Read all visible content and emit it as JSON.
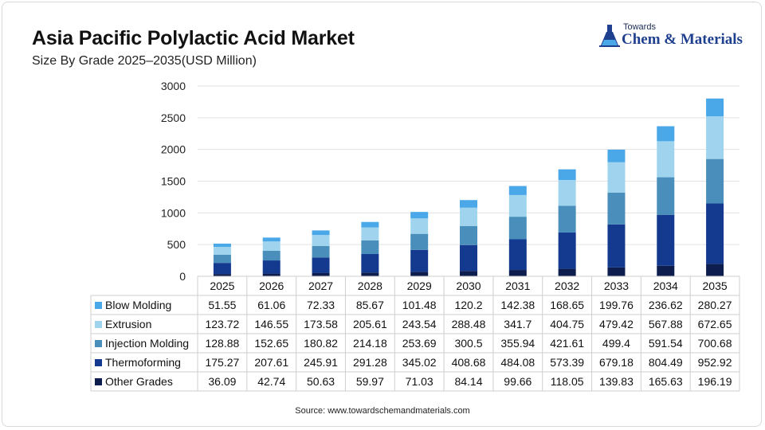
{
  "header": {
    "title": "Asia Pacific Polylactic Acid Market",
    "subtitle": "Size By Grade 2025–2035(USD Million)"
  },
  "logo": {
    "small": "Towards",
    "big": "Chem & Materials",
    "icon": "flask-icon"
  },
  "source": "Source: www.towardschemandmaterials.com",
  "chart_data": {
    "type": "bar",
    "stacked": true,
    "title": "Asia Pacific Polylactic Acid Market",
    "subtitle": "Size By Grade 2025–2035(USD Million)",
    "categories": [
      "2025",
      "2026",
      "2027",
      "2028",
      "2029",
      "2030",
      "2031",
      "2032",
      "2033",
      "2034",
      "2035"
    ],
    "ylim": [
      0,
      3000
    ],
    "yticks": [
      0,
      500,
      1000,
      1500,
      2000,
      2500,
      3000
    ],
    "grid": true,
    "legend": "table-left",
    "series": [
      {
        "name": "Blow Molding",
        "color": "#4aa8e8",
        "values": [
          51.55,
          61.06,
          72.33,
          85.67,
          101.48,
          120.2,
          142.38,
          168.65,
          199.76,
          236.62,
          280.27
        ]
      },
      {
        "name": "Extrusion",
        "color": "#9fd3ee",
        "values": [
          123.72,
          146.55,
          173.58,
          205.61,
          243.54,
          288.48,
          341.7,
          404.75,
          479.42,
          567.88,
          672.65
        ]
      },
      {
        "name": "Injection Molding",
        "color": "#4a8fbc",
        "values": [
          128.88,
          152.65,
          180.82,
          214.18,
          253.69,
          300.5,
          355.94,
          421.61,
          499.4,
          591.54,
          700.68
        ]
      },
      {
        "name": "Thermoforming",
        "color": "#133a8e",
        "values": [
          175.27,
          207.61,
          245.91,
          291.28,
          345.02,
          408.68,
          484.08,
          573.39,
          679.18,
          804.49,
          952.92
        ]
      },
      {
        "name": "Other Grades",
        "color": "#0d1d4e",
        "values": [
          36.09,
          42.74,
          50.63,
          59.97,
          71.03,
          84.14,
          99.66,
          118.05,
          139.83,
          165.63,
          196.19
        ]
      }
    ],
    "stack_order": [
      "Other Grades",
      "Thermoforming",
      "Injection Molding",
      "Extrusion",
      "Blow Molding"
    ]
  }
}
